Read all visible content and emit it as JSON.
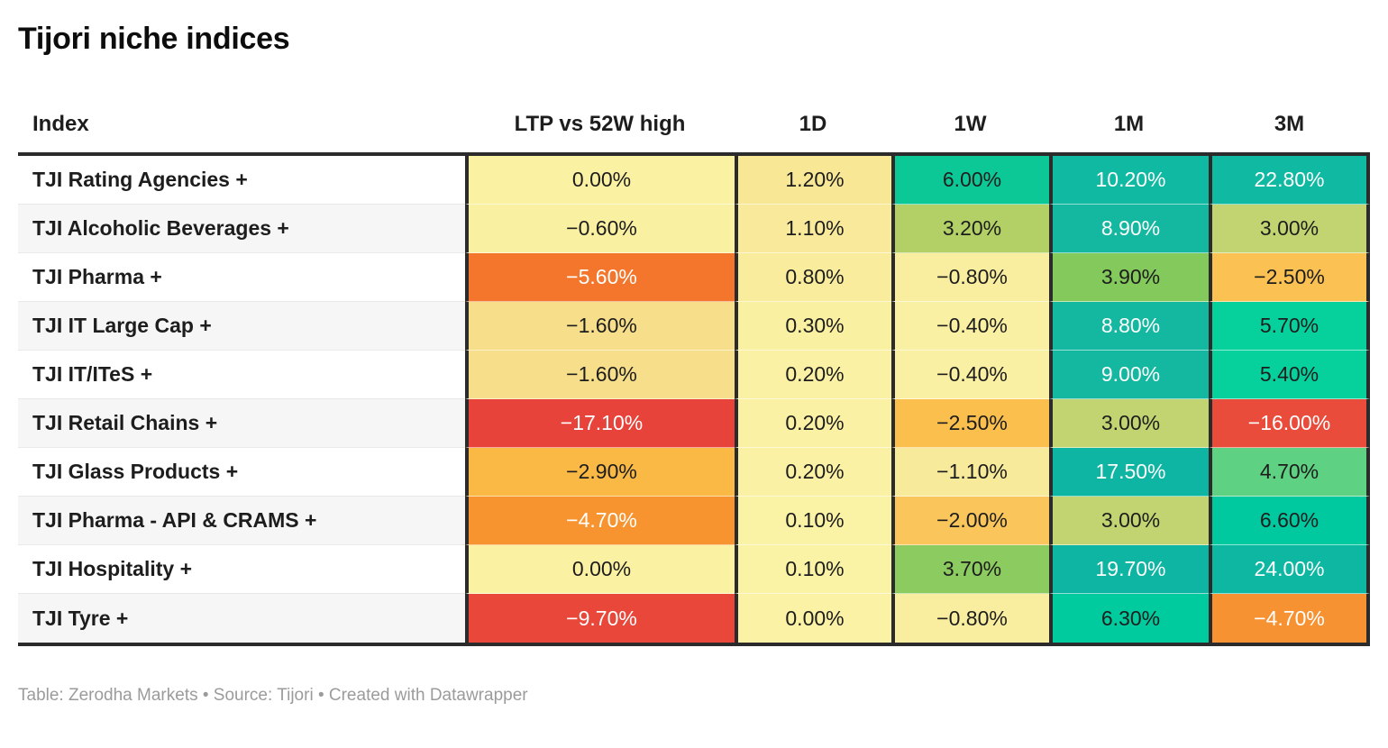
{
  "title": "Tijori niche indices",
  "footer": "Table: Zerodha Markets • Source: Tijori • Created with Datawrapper",
  "colors": {
    "border": "#2b2b2b",
    "text_dark": "#1d1d1d",
    "text_light": "#ffffff",
    "row_alt_background": "#f6f6f6",
    "footer_text": "#9b9b9b"
  },
  "table": {
    "columns": [
      "Index",
      "LTP vs 52W high",
      "1D",
      "1W",
      "1M",
      "3M"
    ],
    "rows": [
      {
        "label": "TJI Rating Agencies +",
        "cells": [
          {
            "text": "0.00%",
            "bg": "#fbf1a2",
            "fg": "#1d1d1d"
          },
          {
            "text": "1.20%",
            "bg": "#f8e795",
            "fg": "#1d1d1d"
          },
          {
            "text": "6.00%",
            "bg": "#0cc896",
            "fg": "#1d1d1d"
          },
          {
            "text": "10.20%",
            "bg": "#10b9a1",
            "fg": "#ffffff"
          },
          {
            "text": "22.80%",
            "bg": "#10b9a1",
            "fg": "#ffffff"
          }
        ]
      },
      {
        "label": "TJI Alcoholic Beverages +",
        "cells": [
          {
            "text": "−0.60%",
            "bg": "#faf0a1",
            "fg": "#1d1d1d"
          },
          {
            "text": "1.10%",
            "bg": "#f9ea9b",
            "fg": "#1d1d1d"
          },
          {
            "text": "3.20%",
            "bg": "#b2d065",
            "fg": "#1d1d1d"
          },
          {
            "text": "8.90%",
            "bg": "#14b8a0",
            "fg": "#ffffff"
          },
          {
            "text": "3.00%",
            "bg": "#c1d471",
            "fg": "#1d1d1d"
          }
        ]
      },
      {
        "label": "TJI Pharma +",
        "cells": [
          {
            "text": "−5.60%",
            "bg": "#f4752c",
            "fg": "#ffffff"
          },
          {
            "text": "0.80%",
            "bg": "#f9ed9d",
            "fg": "#1d1d1d"
          },
          {
            "text": "−0.80%",
            "bg": "#f9ee9f",
            "fg": "#1d1d1d"
          },
          {
            "text": "3.90%",
            "bg": "#83c95c",
            "fg": "#1d1d1d"
          },
          {
            "text": "−2.50%",
            "bg": "#fbc152",
            "fg": "#1d1d1d"
          }
        ]
      },
      {
        "label": "TJI IT Large Cap +",
        "cells": [
          {
            "text": "−1.60%",
            "bg": "#f7de8a",
            "fg": "#1d1d1d"
          },
          {
            "text": "0.30%",
            "bg": "#faf0a2",
            "fg": "#1d1d1d"
          },
          {
            "text": "−0.40%",
            "bg": "#faf0a3",
            "fg": "#1d1d1d"
          },
          {
            "text": "8.80%",
            "bg": "#14b8a0",
            "fg": "#ffffff"
          },
          {
            "text": "5.70%",
            "bg": "#06d19d",
            "fg": "#1d1d1d"
          }
        ]
      },
      {
        "label": "TJI IT/ITeS +",
        "cells": [
          {
            "text": "−1.60%",
            "bg": "#f7de8a",
            "fg": "#1d1d1d"
          },
          {
            "text": "0.20%",
            "bg": "#faf1a4",
            "fg": "#1d1d1d"
          },
          {
            "text": "−0.40%",
            "bg": "#faf0a3",
            "fg": "#1d1d1d"
          },
          {
            "text": "9.00%",
            "bg": "#14b8a0",
            "fg": "#ffffff"
          },
          {
            "text": "5.40%",
            "bg": "#06d19d",
            "fg": "#1d1d1d"
          }
        ]
      },
      {
        "label": "TJI Retail Chains +",
        "cells": [
          {
            "text": "−17.10%",
            "bg": "#e8433a",
            "fg": "#ffffff"
          },
          {
            "text": "0.20%",
            "bg": "#faf1a4",
            "fg": "#1d1d1d"
          },
          {
            "text": "−2.50%",
            "bg": "#fbbf4e",
            "fg": "#1d1d1d"
          },
          {
            "text": "3.00%",
            "bg": "#c1d471",
            "fg": "#1d1d1d"
          },
          {
            "text": "−16.00%",
            "bg": "#e94c3b",
            "fg": "#ffffff"
          }
        ]
      },
      {
        "label": "TJI Glass Products +",
        "cells": [
          {
            "text": "−2.90%",
            "bg": "#fab944",
            "fg": "#1d1d1d"
          },
          {
            "text": "0.20%",
            "bg": "#faf1a4",
            "fg": "#1d1d1d"
          },
          {
            "text": "−1.10%",
            "bg": "#f8ea9b",
            "fg": "#1d1d1d"
          },
          {
            "text": "17.50%",
            "bg": "#0eb5a3",
            "fg": "#ffffff"
          },
          {
            "text": "4.70%",
            "bg": "#5fd182",
            "fg": "#1d1d1d"
          }
        ]
      },
      {
        "label": "TJI Pharma - API & CRAMS +",
        "cells": [
          {
            "text": "−4.70%",
            "bg": "#f89430",
            "fg": "#ffffff"
          },
          {
            "text": "0.10%",
            "bg": "#faf2a5",
            "fg": "#1d1d1d"
          },
          {
            "text": "−2.00%",
            "bg": "#fac65b",
            "fg": "#1d1d1d"
          },
          {
            "text": "3.00%",
            "bg": "#c1d471",
            "fg": "#1d1d1d"
          },
          {
            "text": "6.60%",
            "bg": "#00c9a0",
            "fg": "#1d1d1d"
          }
        ]
      },
      {
        "label": "TJI Hospitality +",
        "cells": [
          {
            "text": "0.00%",
            "bg": "#fbf1a2",
            "fg": "#1d1d1d"
          },
          {
            "text": "0.10%",
            "bg": "#faf2a5",
            "fg": "#1d1d1d"
          },
          {
            "text": "3.70%",
            "bg": "#8ccb5f",
            "fg": "#1d1d1d"
          },
          {
            "text": "19.70%",
            "bg": "#0eb5a3",
            "fg": "#ffffff"
          },
          {
            "text": "24.00%",
            "bg": "#0eb7a2",
            "fg": "#ffffff"
          }
        ]
      },
      {
        "label": "TJI Tyre +",
        "cells": [
          {
            "text": "−9.70%",
            "bg": "#e9473a",
            "fg": "#ffffff"
          },
          {
            "text": "0.00%",
            "bg": "#fbf2a6",
            "fg": "#1d1d1d"
          },
          {
            "text": "−0.80%",
            "bg": "#f9ee9f",
            "fg": "#1d1d1d"
          },
          {
            "text": "6.30%",
            "bg": "#00cb9e",
            "fg": "#1d1d1d"
          },
          {
            "text": "−4.70%",
            "bg": "#f79233",
            "fg": "#ffffff"
          }
        ]
      }
    ]
  },
  "chart_data": {
    "type": "heatmap",
    "title": "Tijori niche indices",
    "columns": [
      "LTP vs 52W high",
      "1D",
      "1W",
      "1M",
      "3M"
    ],
    "rows": [
      "TJI Rating Agencies +",
      "TJI Alcoholic Beverages +",
      "TJI Pharma +",
      "TJI IT Large Cap +",
      "TJI IT/ITeS +",
      "TJI Retail Chains +",
      "TJI Glass Products +",
      "TJI Pharma - API & CRAMS +",
      "TJI Hospitality +",
      "TJI Tyre +"
    ],
    "values_percent": [
      [
        0.0,
        1.2,
        6.0,
        10.2,
        22.8
      ],
      [
        -0.6,
        1.1,
        3.2,
        8.9,
        3.0
      ],
      [
        -5.6,
        0.8,
        -0.8,
        3.9,
        -2.5
      ],
      [
        -1.6,
        0.3,
        -0.4,
        8.8,
        5.7
      ],
      [
        -1.6,
        0.2,
        -0.4,
        9.0,
        5.4
      ],
      [
        -17.1,
        0.2,
        -2.5,
        3.0,
        -16.0
      ],
      [
        -2.9,
        0.2,
        -1.1,
        17.5,
        4.7
      ],
      [
        -4.7,
        0.1,
        -2.0,
        3.0,
        6.6
      ],
      [
        0.0,
        0.1,
        3.7,
        19.7,
        24.0
      ],
      [
        -9.7,
        0.0,
        -0.8,
        6.3,
        -4.7
      ]
    ],
    "color_scale": "red-yellow-green diverging, red = negative, teal-green = positive",
    "legend_position": "none",
    "grid": "table borders between value columns"
  }
}
